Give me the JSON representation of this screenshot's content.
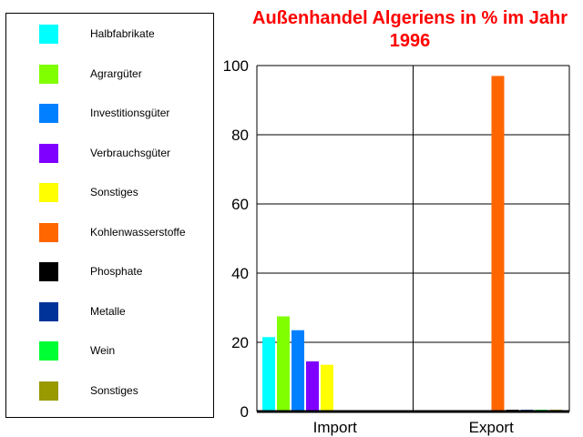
{
  "chart_data": {
    "type": "bar",
    "title": "Außenhandel Algeriens in % im Jahr 1996",
    "categories": [
      "Import",
      "Export"
    ],
    "ylim": [
      0,
      100
    ],
    "yticks": [
      0,
      20,
      40,
      60,
      80,
      100
    ],
    "grid": true,
    "legend_position": "left",
    "series": [
      {
        "name": "Halbfabrikate",
        "color": "#00ffff",
        "values": [
          21.5,
          0
        ]
      },
      {
        "name": "Agrargüter",
        "color": "#80ff00",
        "values": [
          27.5,
          0
        ]
      },
      {
        "name": "Investitionsgüter",
        "color": "#0080ff",
        "values": [
          23.5,
          0
        ]
      },
      {
        "name": "Verbrauchsgüter",
        "color": "#8000ff",
        "values": [
          14.5,
          0
        ]
      },
      {
        "name": "Sonstiges",
        "color": "#ffff00",
        "values": [
          13.5,
          0
        ]
      },
      {
        "name": "Kohlenwasserstoffe",
        "color": "#ff6600",
        "values": [
          0,
          97
        ]
      },
      {
        "name": "Phosphate",
        "color": "#000000",
        "values": [
          0,
          0.5
        ]
      },
      {
        "name": "Metalle",
        "color": "#003399",
        "values": [
          0,
          0.5
        ]
      },
      {
        "name": "Wein",
        "color": "#00ff33",
        "values": [
          0,
          0.5
        ]
      },
      {
        "name": "Sonstiges",
        "color": "#999900",
        "values": [
          0,
          0.5
        ]
      }
    ]
  }
}
